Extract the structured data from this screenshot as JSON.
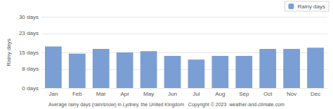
{
  "chart_data": {
    "type": "bar",
    "categories": [
      "Jan",
      "Feb",
      "Mar",
      "Apr",
      "May",
      "Jun",
      "Jul",
      "Aug",
      "Sep",
      "Oct",
      "Nov",
      "Dec"
    ],
    "series": [
      {
        "name": "Rainy days",
        "color": "#7b9fd4",
        "values": [
          17.5,
          14.5,
          16.5,
          15.0,
          15.5,
          13.5,
          12.0,
          13.5,
          13.5,
          16.5,
          16.5,
          17.0
        ]
      }
    ],
    "ylabel": "Rainy days",
    "ylim": [
      0,
      30
    ],
    "yticks": [
      {
        "value": 0,
        "label": "0 days"
      },
      {
        "value": 8,
        "label": "8 days"
      },
      {
        "value": 15,
        "label": "15 days"
      },
      {
        "value": 23,
        "label": "23 days"
      },
      {
        "value": 30,
        "label": "30 days"
      }
    ],
    "grid": true,
    "legend": "upper right",
    "annotations": [
      "Average rainy days (rain/snow) in Lydney, the United Kingdom   Copyright © 2023  weather-and-climate.com"
    ]
  }
}
